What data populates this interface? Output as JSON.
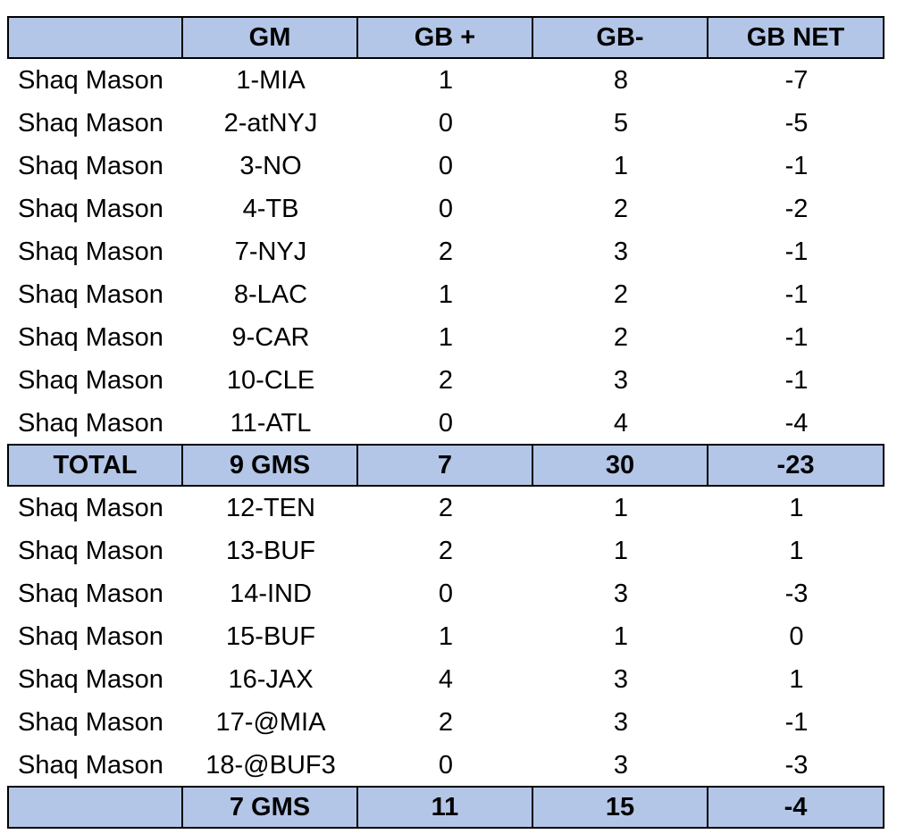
{
  "table": {
    "header": [
      "GM",
      "GB +",
      "GB-",
      "GB NET"
    ],
    "sections": [
      {
        "rows": [
          [
            "Shaq Mason",
            "1-MIA",
            1,
            8,
            -7
          ],
          [
            "Shaq Mason",
            "2-atNYJ",
            0,
            5,
            -5
          ],
          [
            "Shaq Mason",
            "3-NO",
            0,
            1,
            -1
          ],
          [
            "Shaq Mason",
            "4-TB",
            0,
            2,
            -2
          ],
          [
            "Shaq Mason",
            "7-NYJ",
            2,
            3,
            -1
          ],
          [
            "Shaq Mason",
            "8-LAC",
            1,
            2,
            -1
          ],
          [
            "Shaq Mason",
            "9-CAR",
            1,
            2,
            -1
          ],
          [
            "Shaq Mason",
            "10-CLE",
            2,
            3,
            -1
          ],
          [
            "Shaq Mason",
            "11-ATL",
            0,
            4,
            -4
          ]
        ],
        "total": {
          "label": "TOTAL",
          "cells": [
            "9 GMS",
            7,
            30,
            -23
          ]
        }
      },
      {
        "rows": [
          [
            "Shaq Mason",
            "12-TEN",
            2,
            1,
            1
          ],
          [
            "Shaq Mason",
            "13-BUF",
            2,
            1,
            1
          ],
          [
            "Shaq Mason",
            "14-IND",
            0,
            3,
            -3
          ],
          [
            "Shaq Mason",
            "15-BUF",
            1,
            1,
            0
          ],
          [
            "Shaq Mason",
            "16-JAX",
            4,
            3,
            1
          ],
          [
            "Shaq Mason",
            "17-@MIA",
            2,
            3,
            -1
          ],
          [
            "Shaq Mason",
            "18-@BUF3",
            0,
            3,
            -3
          ]
        ],
        "total": {
          "cells": [
            "7 GMS",
            11,
            15,
            -4
          ]
        }
      }
    ]
  }
}
